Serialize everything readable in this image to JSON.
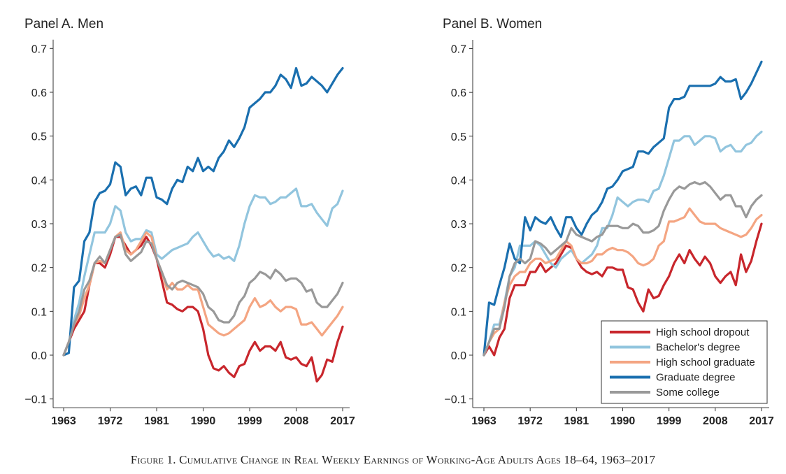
{
  "caption": "Figure 1. Cumulative Change in Real Weekly Earnings of Working-Age Adults Ages 18–64, 1963–2017",
  "chart_data": [
    {
      "type": "line",
      "title": "Panel A. Men",
      "xlabel": "",
      "ylabel": "",
      "xlim": [
        1963,
        2017
      ],
      "ylim": [
        -0.12,
        0.72
      ],
      "x_ticks": [
        "1963",
        "1972",
        "1981",
        "1990",
        "1999",
        "2008",
        "2017"
      ],
      "y_ticks": [
        "0.7",
        "0.6",
        "0.5",
        "0.4",
        "0.3",
        "0.2",
        "0.1",
        "0.0",
        "−0.1"
      ],
      "grid": false,
      "x": [
        1963,
        1964,
        1965,
        1966,
        1967,
        1968,
        1969,
        1970,
        1971,
        1972,
        1973,
        1974,
        1975,
        1976,
        1977,
        1978,
        1979,
        1980,
        1981,
        1982,
        1983,
        1984,
        1985,
        1986,
        1987,
        1988,
        1989,
        1990,
        1991,
        1992,
        1993,
        1994,
        1995,
        1996,
        1997,
        1998,
        1999,
        2000,
        2001,
        2002,
        2003,
        2004,
        2005,
        2006,
        2007,
        2008,
        2009,
        2010,
        2011,
        2012,
        2013,
        2014,
        2015,
        2016,
        2017
      ],
      "series": [
        {
          "name": "High school dropout",
          "color": "#c8262c",
          "values": [
            0.0,
            0.03,
            0.06,
            0.08,
            0.1,
            0.16,
            0.21,
            0.21,
            0.2,
            0.23,
            0.27,
            0.27,
            0.25,
            0.23,
            0.24,
            0.25,
            0.27,
            0.25,
            0.22,
            0.17,
            0.12,
            0.115,
            0.105,
            0.1,
            0.11,
            0.11,
            0.1,
            0.06,
            0.0,
            -0.03,
            -0.035,
            -0.025,
            -0.04,
            -0.05,
            -0.025,
            -0.02,
            0.01,
            0.03,
            0.01,
            0.02,
            0.02,
            0.01,
            0.03,
            -0.005,
            -0.01,
            -0.005,
            -0.02,
            -0.025,
            -0.005,
            -0.06,
            -0.045,
            -0.01,
            -0.015,
            0.03,
            0.065
          ]
        },
        {
          "name": "Bachelor's degree",
          "color": "#92c5de",
          "values": [
            0.0,
            0.03,
            0.08,
            0.12,
            0.18,
            0.23,
            0.28,
            0.28,
            0.28,
            0.3,
            0.34,
            0.33,
            0.28,
            0.26,
            0.265,
            0.265,
            0.285,
            0.28,
            0.23,
            0.22,
            0.23,
            0.24,
            0.245,
            0.25,
            0.255,
            0.27,
            0.28,
            0.26,
            0.24,
            0.225,
            0.23,
            0.22,
            0.225,
            0.215,
            0.25,
            0.3,
            0.34,
            0.365,
            0.36,
            0.36,
            0.345,
            0.35,
            0.36,
            0.36,
            0.37,
            0.38,
            0.34,
            0.34,
            0.345,
            0.325,
            0.31,
            0.295,
            0.335,
            0.345,
            0.375
          ]
        },
        {
          "name": "High school graduate",
          "color": "#f4a582",
          "values": [
            0.0,
            0.03,
            0.07,
            0.09,
            0.13,
            0.16,
            0.21,
            0.215,
            0.21,
            0.24,
            0.27,
            0.28,
            0.24,
            0.23,
            0.24,
            0.26,
            0.28,
            0.27,
            0.22,
            0.19,
            0.15,
            0.165,
            0.15,
            0.15,
            0.16,
            0.15,
            0.15,
            0.11,
            0.07,
            0.06,
            0.05,
            0.045,
            0.05,
            0.06,
            0.07,
            0.08,
            0.11,
            0.13,
            0.11,
            0.115,
            0.125,
            0.11,
            0.1,
            0.11,
            0.11,
            0.105,
            0.07,
            0.07,
            0.075,
            0.06,
            0.045,
            0.06,
            0.075,
            0.09,
            0.11
          ]
        },
        {
          "name": "Graduate degree",
          "color": "#1a6faf",
          "values": [
            0.0,
            0.005,
            0.155,
            0.17,
            0.26,
            0.28,
            0.35,
            0.37,
            0.375,
            0.39,
            0.44,
            0.43,
            0.365,
            0.38,
            0.385,
            0.365,
            0.405,
            0.405,
            0.36,
            0.355,
            0.345,
            0.38,
            0.4,
            0.395,
            0.43,
            0.42,
            0.45,
            0.42,
            0.43,
            0.42,
            0.45,
            0.465,
            0.49,
            0.475,
            0.495,
            0.52,
            0.565,
            0.575,
            0.585,
            0.6,
            0.6,
            0.615,
            0.64,
            0.63,
            0.61,
            0.655,
            0.615,
            0.62,
            0.635,
            0.625,
            0.615,
            0.6,
            0.62,
            0.64,
            0.655
          ]
        },
        {
          "name": "Some college",
          "color": "#999999",
          "values": [
            0.0,
            0.03,
            0.07,
            0.1,
            0.15,
            0.17,
            0.21,
            0.225,
            0.21,
            0.24,
            0.27,
            0.275,
            0.23,
            0.215,
            0.225,
            0.235,
            0.26,
            0.255,
            0.22,
            0.19,
            0.16,
            0.15,
            0.165,
            0.17,
            0.165,
            0.16,
            0.155,
            0.14,
            0.11,
            0.1,
            0.08,
            0.075,
            0.075,
            0.09,
            0.12,
            0.135,
            0.165,
            0.175,
            0.19,
            0.185,
            0.175,
            0.195,
            0.185,
            0.17,
            0.175,
            0.175,
            0.165,
            0.145,
            0.15,
            0.12,
            0.11,
            0.11,
            0.125,
            0.14,
            0.165
          ]
        }
      ]
    },
    {
      "type": "line",
      "title": "Panel B. Women",
      "xlabel": "",
      "ylabel": "",
      "xlim": [
        1963,
        2017
      ],
      "ylim": [
        -0.12,
        0.72
      ],
      "x_ticks": [
        "1963",
        "1972",
        "1981",
        "1990",
        "1999",
        "2008",
        "2017"
      ],
      "y_ticks": [
        "0.7",
        "0.6",
        "0.5",
        "0.4",
        "0.3",
        "0.2",
        "0.1",
        "0.0",
        "−0.1"
      ],
      "grid": false,
      "legend_position": "bottom-right",
      "x": [
        1963,
        1964,
        1965,
        1966,
        1967,
        1968,
        1969,
        1970,
        1971,
        1972,
        1973,
        1974,
        1975,
        1976,
        1977,
        1978,
        1979,
        1980,
        1981,
        1982,
        1983,
        1984,
        1985,
        1986,
        1987,
        1988,
        1989,
        1990,
        1991,
        1992,
        1993,
        1994,
        1995,
        1996,
        1997,
        1998,
        1999,
        2000,
        2001,
        2002,
        2003,
        2004,
        2005,
        2006,
        2007,
        2008,
        2009,
        2010,
        2011,
        2012,
        2013,
        2014,
        2015,
        2016,
        2017
      ],
      "series": [
        {
          "name": "High school dropout",
          "color": "#c8262c",
          "values": [
            0.0,
            0.02,
            0.0,
            0.04,
            0.06,
            0.13,
            0.16,
            0.16,
            0.16,
            0.19,
            0.19,
            0.21,
            0.19,
            0.2,
            0.21,
            0.23,
            0.25,
            0.245,
            0.22,
            0.2,
            0.19,
            0.185,
            0.19,
            0.18,
            0.2,
            0.2,
            0.195,
            0.195,
            0.155,
            0.15,
            0.12,
            0.1,
            0.15,
            0.13,
            0.135,
            0.16,
            0.18,
            0.21,
            0.23,
            0.21,
            0.24,
            0.22,
            0.205,
            0.225,
            0.21,
            0.18,
            0.165,
            0.18,
            0.19,
            0.16,
            0.23,
            0.19,
            0.215,
            0.26,
            0.3
          ]
        },
        {
          "name": "Bachelor's degree",
          "color": "#92c5de",
          "values": [
            0.0,
            0.03,
            0.07,
            0.07,
            0.12,
            0.18,
            0.2,
            0.25,
            0.25,
            0.25,
            0.26,
            0.25,
            0.23,
            0.21,
            0.2,
            0.22,
            0.23,
            0.24,
            0.22,
            0.21,
            0.22,
            0.23,
            0.25,
            0.29,
            0.29,
            0.32,
            0.36,
            0.35,
            0.34,
            0.35,
            0.355,
            0.355,
            0.35,
            0.375,
            0.38,
            0.41,
            0.45,
            0.49,
            0.49,
            0.5,
            0.5,
            0.48,
            0.49,
            0.5,
            0.5,
            0.495,
            0.465,
            0.475,
            0.48,
            0.465,
            0.465,
            0.48,
            0.485,
            0.5,
            0.51
          ]
        },
        {
          "name": "High school graduate",
          "color": "#f4a582",
          "values": [
            0.0,
            0.03,
            0.05,
            0.06,
            0.12,
            0.16,
            0.18,
            0.19,
            0.19,
            0.21,
            0.22,
            0.22,
            0.21,
            0.215,
            0.22,
            0.24,
            0.26,
            0.25,
            0.22,
            0.21,
            0.21,
            0.215,
            0.23,
            0.23,
            0.24,
            0.245,
            0.24,
            0.24,
            0.235,
            0.225,
            0.21,
            0.205,
            0.21,
            0.22,
            0.25,
            0.26,
            0.305,
            0.305,
            0.31,
            0.315,
            0.335,
            0.32,
            0.305,
            0.3,
            0.3,
            0.3,
            0.29,
            0.285,
            0.28,
            0.275,
            0.27,
            0.275,
            0.29,
            0.31,
            0.32
          ]
        },
        {
          "name": "Graduate degree",
          "color": "#1a6faf",
          "values": [
            0.0,
            0.12,
            0.115,
            0.16,
            0.2,
            0.255,
            0.22,
            0.21,
            0.315,
            0.285,
            0.315,
            0.305,
            0.3,
            0.315,
            0.29,
            0.27,
            0.315,
            0.315,
            0.29,
            0.275,
            0.3,
            0.32,
            0.33,
            0.35,
            0.38,
            0.385,
            0.4,
            0.42,
            0.425,
            0.43,
            0.465,
            0.465,
            0.46,
            0.475,
            0.485,
            0.495,
            0.565,
            0.585,
            0.585,
            0.59,
            0.615,
            0.615,
            0.615,
            0.615,
            0.615,
            0.62,
            0.635,
            0.625,
            0.625,
            0.63,
            0.585,
            0.6,
            0.62,
            0.645,
            0.67
          ]
        },
        {
          "name": "Some college",
          "color": "#999999",
          "values": [
            0.0,
            0.03,
            0.06,
            0.06,
            0.11,
            0.18,
            0.21,
            0.22,
            0.21,
            0.22,
            0.26,
            0.255,
            0.245,
            0.23,
            0.24,
            0.25,
            0.26,
            0.29,
            0.275,
            0.27,
            0.265,
            0.26,
            0.27,
            0.275,
            0.295,
            0.295,
            0.295,
            0.29,
            0.29,
            0.3,
            0.295,
            0.28,
            0.28,
            0.285,
            0.295,
            0.33,
            0.355,
            0.375,
            0.385,
            0.38,
            0.39,
            0.395,
            0.39,
            0.395,
            0.385,
            0.37,
            0.355,
            0.365,
            0.365,
            0.34,
            0.34,
            0.315,
            0.34,
            0.355,
            0.365
          ]
        }
      ]
    }
  ]
}
